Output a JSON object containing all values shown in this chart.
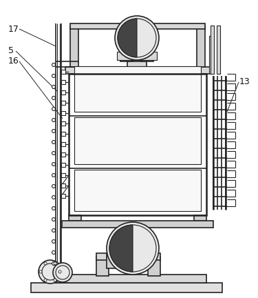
{
  "bg_color": "#ffffff",
  "line_color": "#222222",
  "label_17": "17",
  "label_5": "5",
  "label_16": "16",
  "label_13": "13",
  "figsize": [
    3.75,
    4.32
  ],
  "dpi": 100
}
